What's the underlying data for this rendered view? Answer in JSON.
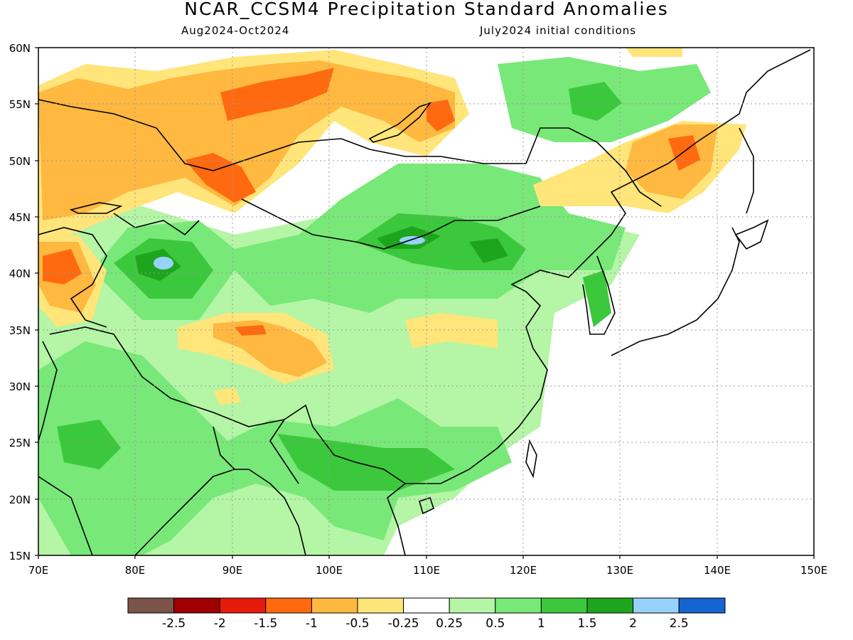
{
  "title": "NCAR_CCSM4 Precipitation Standard Anomalies",
  "subtitle_left": "Aug2024-Oct2024",
  "subtitle_right": "July2024 initial conditions",
  "map": {
    "lon_range": [
      70,
      150
    ],
    "lat_range": [
      15,
      60
    ],
    "lat_labels": [
      "15N",
      "20N",
      "25N",
      "30N",
      "35N",
      "40N",
      "45N",
      "50N",
      "55N",
      "60N"
    ],
    "lon_labels": [
      "70E",
      "80E",
      "90E",
      "100E",
      "110E",
      "120E",
      "130E",
      "140E",
      "150E"
    ],
    "gridlines": "dotted"
  },
  "colorbar": {
    "colors": [
      "#7a5448",
      "#a00000",
      "#e61a0a",
      "#ff6a10",
      "#ffb840",
      "#ffe57a",
      "#ffffff",
      "#b4f5a6",
      "#78e878",
      "#3cc83c",
      "#1ea51e",
      "#96d2fa",
      "#1464d2"
    ],
    "labels": [
      "-2.5",
      "-2",
      "-1.5",
      "-1",
      "-0.5",
      "-0.25",
      "0.25",
      "0.5",
      "1",
      "1.5",
      "2",
      "2.5"
    ]
  },
  "colors": {
    "land_outline": "#000000",
    "grid": "#999999"
  }
}
